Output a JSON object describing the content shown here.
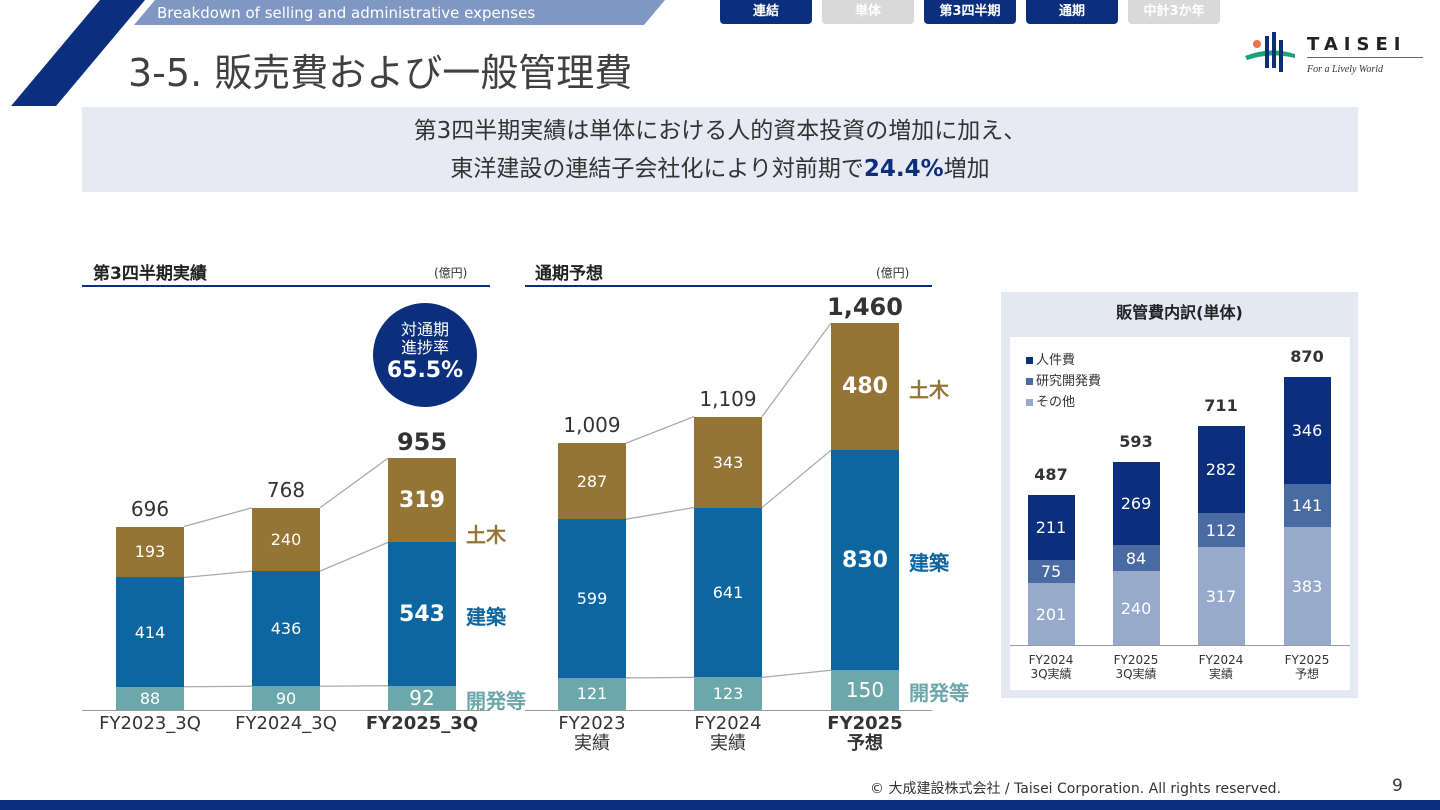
{
  "header": {
    "subtitle": "Breakdown of selling and administrative expenses",
    "title": "3-5. 販売費および一般管理費"
  },
  "tabs": [
    {
      "label": "連結",
      "active": true
    },
    {
      "label": "単体",
      "active": false
    },
    {
      "label": "第3四半期",
      "active": true
    },
    {
      "label": "通期",
      "active": true
    },
    {
      "label": "中計3か年",
      "active": false
    }
  ],
  "logo": {
    "name": "TAISEI",
    "tagline": "For a Lively World"
  },
  "banner": {
    "line1": "第3四半期実績は単体における人的資本投資の増加に加え、",
    "line2_pre": "東洋建設の連結子会社化により対前期で",
    "line2_highlight": "24.4%",
    "line2_post": "増加"
  },
  "colors": {
    "civil": "#957535",
    "building": "#0e66a0",
    "dev": "#6ba7ab",
    "personnel": "#0b2f7d",
    "rnd": "#4a6aa3",
    "other": "#97aacb",
    "navy": "#0b2f7d"
  },
  "progress_badge": {
    "line1": "対通期",
    "line2": "進捗率",
    "value": "65.5%"
  },
  "chart_data": [
    {
      "type": "bar",
      "stacked": true,
      "title": "第3四半期実績",
      "unit": "(億円)",
      "categories": [
        "FY2023_3Q",
        "FY2024_3Q",
        "FY2025_3Q"
      ],
      "series": [
        {
          "name": "開発等",
          "values": [
            88,
            90,
            92
          ]
        },
        {
          "name": "建築",
          "values": [
            414,
            436,
            543
          ]
        },
        {
          "name": "土木",
          "values": [
            193,
            240,
            319
          ]
        }
      ],
      "totals": [
        "696",
        "768",
        "955"
      ],
      "segment_labels": [
        [
          "88",
          "414",
          "193"
        ],
        [
          "90",
          "436",
          "240"
        ],
        [
          "92",
          "543",
          "319"
        ]
      ]
    },
    {
      "type": "bar",
      "stacked": true,
      "title": "通期予想",
      "unit": "(億円)",
      "categories": [
        "FY2023\n実績",
        "FY2024\n実績",
        "FY2025\n予想"
      ],
      "series": [
        {
          "name": "開発等",
          "values": [
            121,
            123,
            150
          ]
        },
        {
          "name": "建築",
          "values": [
            599,
            641,
            830
          ]
        },
        {
          "name": "土木",
          "values": [
            287,
            343,
            480
          ]
        }
      ],
      "totals": [
        "1,009",
        "1,109",
        "1,460"
      ],
      "segment_labels": [
        [
          "121",
          "599",
          "287"
        ],
        [
          "123",
          "641",
          "343"
        ],
        [
          "150",
          "830",
          "480"
        ]
      ]
    },
    {
      "type": "bar",
      "stacked": true,
      "title": "販管費内訳(単体)",
      "categories": [
        "FY2024\n3Q実績",
        "FY2025\n3Q実績",
        "FY2024\n実績",
        "FY2025\n予想"
      ],
      "series": [
        {
          "name": "その他",
          "values": [
            201,
            240,
            317,
            383
          ]
        },
        {
          "name": "研究開発費",
          "values": [
            75,
            84,
            112,
            141
          ]
        },
        {
          "name": "人件費",
          "values": [
            211,
            269,
            282,
            346
          ]
        }
      ],
      "totals": [
        "487",
        "593",
        "711",
        "870"
      ],
      "legend": [
        "人件費",
        "研究開発費",
        "その他"
      ],
      "legend_placement": "top-left"
    }
  ],
  "footer": {
    "copyright": "© 大成建設株式会社 / Taisei Corporation. All rights reserved.",
    "page": "9"
  }
}
